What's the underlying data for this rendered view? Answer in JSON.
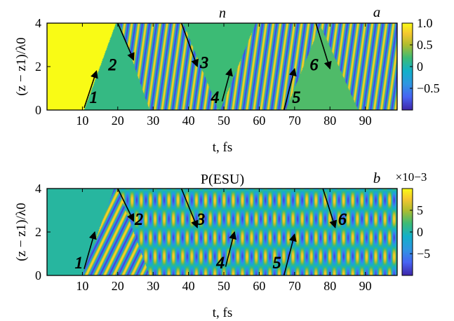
{
  "chart_data": [
    {
      "panel": "a",
      "type": "heatmap",
      "title": "n",
      "panel_label": "a",
      "xlabel": "t, fs",
      "ylabel": "(z − z1)/λ0",
      "xlim": [
        0,
        99
      ],
      "ylim": [
        0,
        4
      ],
      "x_ticks": [
        10,
        20,
        30,
        40,
        50,
        60,
        70,
        80,
        90
      ],
      "y_ticks": [
        0,
        2,
        4
      ],
      "colorbar": {
        "ticks": [
          "1.0",
          "0.5",
          "0",
          "−0.5"
        ],
        "tick_values": [
          1.0,
          0.5,
          0,
          -0.5
        ],
        "range": [
          -1,
          1
        ],
        "exponent_label": ""
      },
      "stripe_period_fs": 2.0,
      "stripe_amp": 0.85,
      "stripe_tilt": -0.35,
      "regions": [
        {
          "kind": "uniform",
          "value": 1.0
        },
        {
          "kind": "uniform",
          "from_line": 0,
          "value": 0.15
        },
        {
          "kind": "stripes",
          "from_line": 1
        },
        {
          "kind": "uniform",
          "from_line": 2,
          "value": 0.2
        },
        {
          "kind": "stripes",
          "from_line": 3
        },
        {
          "kind": "uniform",
          "from_line": 4,
          "value": 0.25
        },
        {
          "kind": "stripes",
          "from_line": 5
        }
      ],
      "boundaries": [
        {
          "t_at_z0": 10.5,
          "t_at_z4": 19.5
        },
        {
          "t_at_z0": 29.0,
          "t_at_z4": 20.5
        },
        {
          "t_at_z0": 48.5,
          "t_at_z4": 38.5
        },
        {
          "t_at_z0": 49.0,
          "t_at_z4": 59.0
        },
        {
          "t_at_z0": 67.5,
          "t_at_z4": 77.5
        },
        {
          "t_at_z0": 88.0,
          "t_at_z4": 77.0
        }
      ],
      "annotations": [
        {
          "label": "1",
          "arrow_from": [
            10.5,
            0.1
          ],
          "arrow_to": [
            14.0,
            1.8
          ],
          "text_at": [
            13.2,
            0.6
          ]
        },
        {
          "label": "2",
          "arrow_from": [
            20.0,
            4.0
          ],
          "arrow_to": [
            24.5,
            2.3
          ],
          "text_at": [
            18.5,
            2.1
          ]
        },
        {
          "label": "3",
          "arrow_from": [
            38.0,
            4.0
          ],
          "arrow_to": [
            42.5,
            2.0
          ],
          "text_at": [
            44.5,
            2.2
          ]
        },
        {
          "label": "4",
          "arrow_from": [
            49.5,
            0.4
          ],
          "arrow_to": [
            52.0,
            1.9
          ],
          "text_at": [
            47.5,
            0.6
          ]
        },
        {
          "label": "5",
          "arrow_from": [
            67.0,
            0.0
          ],
          "arrow_to": [
            70.0,
            1.9
          ],
          "text_at": [
            70.5,
            0.6
          ]
        },
        {
          "label": "6",
          "arrow_from": [
            76.0,
            4.0
          ],
          "arrow_to": [
            80.0,
            1.9
          ],
          "text_at": [
            75.5,
            2.1
          ]
        }
      ]
    },
    {
      "panel": "b",
      "type": "heatmap",
      "title": "P(ESU)",
      "panel_label": "b",
      "xlabel": "t, fs",
      "ylabel": "(z − z1)/λ0",
      "xlim": [
        0,
        99
      ],
      "ylim": [
        0,
        4
      ],
      "x_ticks": [
        10,
        20,
        30,
        40,
        50,
        60,
        70,
        80,
        90
      ],
      "y_ticks": [
        0,
        2,
        4
      ],
      "colorbar": {
        "ticks": [
          "5",
          "0",
          "−5"
        ],
        "tick_values": [
          5,
          0,
          -5
        ],
        "range": [
          -10,
          10
        ],
        "exponent_label": "×10−3"
      },
      "stripe_period_fs": 2.6,
      "stripe_amp": 0.85,
      "stripe_tilt": -1.2,
      "regions": [
        {
          "kind": "uniform",
          "value": 0.05
        },
        {
          "kind": "stripes",
          "from_line": 0
        },
        {
          "kind": "checker",
          "from_line": 1
        },
        {
          "kind": "checker",
          "from_line": 2
        },
        {
          "kind": "checker",
          "from_line": 3
        },
        {
          "kind": "checker",
          "from_line": 4
        },
        {
          "kind": "checker",
          "from_line": 5
        }
      ],
      "boundaries": [
        {
          "t_at_z0": 10.0,
          "t_at_z4": 19.0
        },
        {
          "t_at_z0": 29.0,
          "t_at_z4": 20.0
        },
        {
          "t_at_z0": 48.0,
          "t_at_z4": 39.0
        },
        {
          "t_at_z0": 50.5,
          "t_at_z4": 59.0
        },
        {
          "t_at_z0": 66.5,
          "t_at_z4": 76.0
        },
        {
          "t_at_z0": 87.5,
          "t_at_z4": 77.5
        }
      ],
      "annotations": [
        {
          "label": "1",
          "arrow_from": [
            10.5,
            0.3
          ],
          "arrow_to": [
            13.5,
            2.0
          ],
          "text_at": [
            9.0,
            0.6
          ]
        },
        {
          "label": "2",
          "arrow_from": [
            20.0,
            4.0
          ],
          "arrow_to": [
            24.5,
            2.5
          ],
          "text_at": [
            26.0,
            2.6
          ]
        },
        {
          "label": "3",
          "arrow_from": [
            38.0,
            4.0
          ],
          "arrow_to": [
            42.5,
            2.2
          ],
          "text_at": [
            43.5,
            2.6
          ]
        },
        {
          "label": "4",
          "arrow_from": [
            50.5,
            0.4
          ],
          "arrow_to": [
            53.0,
            2.0
          ],
          "text_at": [
            49.0,
            0.6
          ]
        },
        {
          "label": "5",
          "arrow_from": [
            67.0,
            0.0
          ],
          "arrow_to": [
            70.0,
            1.9
          ],
          "text_at": [
            65.0,
            0.6
          ]
        },
        {
          "label": "6",
          "arrow_from": [
            78.0,
            4.0
          ],
          "arrow_to": [
            81.5,
            2.2
          ],
          "text_at": [
            83.5,
            2.6
          ]
        }
      ]
    }
  ]
}
